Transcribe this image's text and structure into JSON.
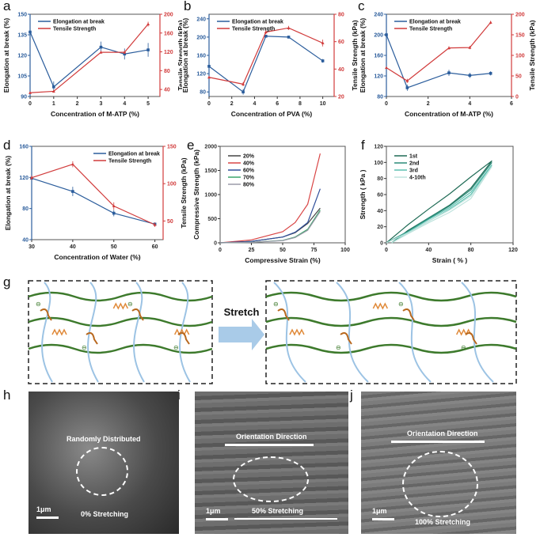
{
  "panel_labels": [
    "a",
    "b",
    "c",
    "d",
    "e",
    "f",
    "g",
    "h",
    "i",
    "j"
  ],
  "colors": {
    "elongation": "#2b5d9c",
    "tensile": "#d13b3b",
    "fiber_green": "#3d7a2c",
    "fiber_blue": "#9cc3e4",
    "spring": "#e08a3a",
    "crosslink": "#b8681e"
  },
  "chart_data": [
    {
      "id": "a",
      "type": "line",
      "xlabel": "Concentration of M-ATP (%)",
      "ylabel": "Elongation at break (%)",
      "y2label": "Tensile Strength (kPa)",
      "xlim": [
        0,
        5.5
      ],
      "ylim": [
        90,
        150
      ],
      "y2lim": [
        25,
        200
      ],
      "xticks": [
        0,
        1,
        2,
        3,
        4,
        5
      ],
      "yticks": [
        90,
        105,
        120,
        135,
        150
      ],
      "y2ticks": [
        40,
        80,
        120,
        160,
        200
      ],
      "legend": "top-left",
      "x": [
        0,
        1,
        3,
        4,
        5
      ],
      "series": [
        {
          "name": "Elongation at break",
          "axis": "left",
          "values": [
            137,
            97,
            126,
            121,
            124
          ],
          "error": [
            0,
            4,
            4,
            4,
            5
          ]
        },
        {
          "name": "Tensile Strength",
          "axis": "right",
          "values": [
            33,
            36,
            119,
            119,
            179
          ],
          "error": [
            0,
            3,
            3,
            3,
            5
          ]
        }
      ]
    },
    {
      "id": "b",
      "type": "line",
      "xlabel": "Concentration of PVA (%)",
      "ylabel": "Elongation at break (%)",
      "y2label": "Tensile Strength (kPa)",
      "xlim": [
        0,
        11
      ],
      "ylim": [
        70,
        250
      ],
      "y2lim": [
        20,
        80
      ],
      "xticks": [
        0,
        2,
        4,
        6,
        8,
        10
      ],
      "yticks": [
        80,
        120,
        160,
        200,
        240
      ],
      "y2ticks": [
        20,
        40,
        60,
        80
      ],
      "legend": "top-left",
      "x": [
        0,
        3,
        5,
        7,
        10
      ],
      "series": [
        {
          "name": "Elongation at break",
          "axis": "left",
          "values": [
            136,
            80,
            202,
            200,
            148
          ],
          "error": [
            4,
            6,
            3,
            3,
            4
          ]
        },
        {
          "name": "Tensile Strength",
          "axis": "right",
          "values": [
            34,
            29,
            67,
            70,
            59
          ],
          "error": [
            1,
            1.5,
            1.5,
            1.5,
            2.5
          ]
        }
      ]
    },
    {
      "id": "c",
      "type": "line",
      "xlabel": "Concentration of M-ATP (%)",
      "ylabel": "Elongation at break (%)",
      "y2label": "Tensile Strength (kPa)",
      "xlim": [
        0,
        6
      ],
      "ylim": [
        80,
        240
      ],
      "y2lim": [
        0,
        200
      ],
      "xticks": [
        0,
        2,
        4,
        6
      ],
      "yticks": [
        80,
        120,
        160,
        200,
        240
      ],
      "y2ticks": [
        0,
        50,
        100,
        150,
        200
      ],
      "legend": "top-left",
      "x": [
        0,
        1,
        3,
        4,
        5
      ],
      "series": [
        {
          "name": "Elongation at break",
          "axis": "left",
          "values": [
            200,
            97,
            126,
            121,
            125
          ],
          "error": [
            0,
            6,
            6,
            5,
            4
          ]
        },
        {
          "name": "Tensile Strength",
          "axis": "right",
          "values": [
            70,
            38,
            118,
            119,
            180
          ],
          "error": [
            0,
            5,
            4,
            4,
            4
          ]
        }
      ]
    },
    {
      "id": "d",
      "type": "line",
      "xlabel": "Concentration of Water (%)",
      "ylabel": "Elongation at break (%)",
      "y2label": "Tensile Strength (kPa)",
      "xlim": [
        30,
        62
      ],
      "ylim": [
        40,
        160
      ],
      "y2lim": [
        25,
        150
      ],
      "xticks": [
        30,
        40,
        50,
        60
      ],
      "yticks": [
        40,
        80,
        120,
        160
      ],
      "y2ticks": [
        50,
        100,
        150
      ],
      "legend": "top-right",
      "x": [
        30,
        40,
        50,
        60
      ],
      "series": [
        {
          "name": "Elongation at break",
          "axis": "left",
          "values": [
            119,
            102,
            74,
            60
          ],
          "error": [
            5,
            6,
            4,
            2
          ]
        },
        {
          "name": "Tensile Strength",
          "axis": "right",
          "values": [
            108,
            126,
            70,
            45
          ],
          "error": [
            3,
            4,
            5,
            3
          ]
        }
      ]
    },
    {
      "id": "e",
      "type": "line",
      "xlabel": "Compressive Strain (%)",
      "ylabel": "Compressive Strength (kPa)",
      "xlim": [
        0,
        100
      ],
      "ylim": [
        0,
        2000
      ],
      "xticks": [
        0,
        25,
        50,
        75,
        100
      ],
      "yticks": [
        0,
        500,
        1000,
        1500,
        2000
      ],
      "legend": "top-left",
      "x": [
        0,
        25,
        50,
        60,
        70,
        80
      ],
      "series": [
        {
          "name": "20%",
          "color": "#444444",
          "values": [
            0,
            30,
            120,
            210,
            400,
            720
          ]
        },
        {
          "name": "40%",
          "color": "#d94545",
          "values": [
            0,
            60,
            230,
            420,
            800,
            1850
          ]
        },
        {
          "name": "60%",
          "color": "#2f4f9a",
          "values": [
            0,
            30,
            120,
            220,
            420,
            1120
          ]
        },
        {
          "name": "70%",
          "color": "#3aa56a",
          "values": [
            0,
            10,
            50,
            120,
            280,
            680
          ]
        },
        {
          "name": "80%",
          "color": "#9a9aa8",
          "values": [
            0,
            10,
            45,
            110,
            260,
            650
          ]
        }
      ]
    },
    {
      "id": "f",
      "type": "line",
      "xlabel": "Strain ( % )",
      "ylabel": "Strength ( kPa )",
      "xlim": [
        0,
        120
      ],
      "ylim": [
        0,
        120
      ],
      "xticks": [
        0,
        40,
        80,
        120
      ],
      "yticks": [
        0,
        20,
        40,
        60,
        80,
        100,
        120
      ],
      "legend": "top-left",
      "x": [
        0,
        20,
        40,
        60,
        80,
        100,
        80,
        60,
        40,
        20,
        5
      ],
      "series": [
        {
          "name": "1st",
          "color": "#1f6b55",
          "values": [
            0,
            22,
            42,
            61,
            82,
            102,
            68,
            47,
            31,
            15,
            0
          ]
        },
        {
          "name": "2nd",
          "color": "#2a8a78",
          "values": [
            0,
            14,
            31,
            46,
            66,
            100,
            66,
            46,
            30,
            14,
            0
          ]
        },
        {
          "name": "3rd",
          "color": "#5cc0b0",
          "values": [
            0,
            13,
            29,
            44,
            63,
            97,
            60,
            42,
            27,
            12,
            0
          ]
        },
        {
          "name": "4-10th",
          "color": "#bfe3dd",
          "values": [
            0,
            12,
            27,
            41,
            58,
            95,
            55,
            38,
            25,
            11,
            0
          ]
        }
      ]
    }
  ],
  "diagram": {
    "arrow_label": "Stretch",
    "charge_symbol": "⊖"
  },
  "sem": [
    {
      "label": "Randomly Distributed",
      "stretch": "0% Stretching",
      "scale": "1μm"
    },
    {
      "label": "Orientation Direction",
      "stretch": "50% Stretching",
      "scale": "1μm"
    },
    {
      "label": "Orientation Direction",
      "stretch": "100% Stretching",
      "scale": "1μm"
    }
  ]
}
